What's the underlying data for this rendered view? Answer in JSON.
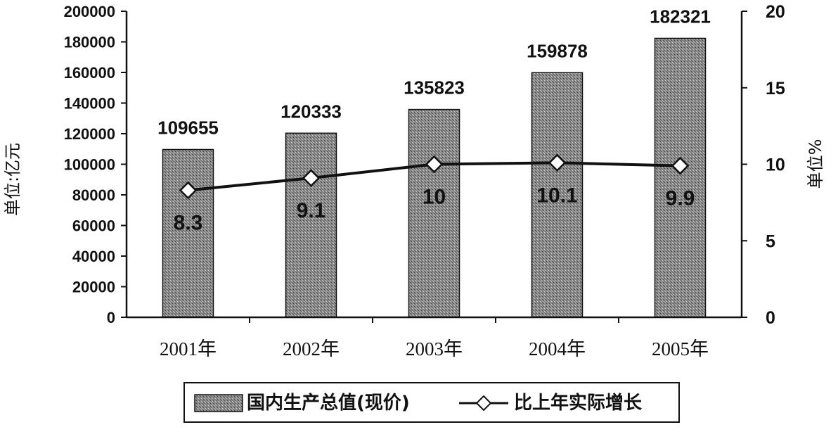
{
  "chart_data": {
    "type": "bar",
    "categories": [
      "2001年",
      "2002年",
      "2003年",
      "2004年",
      "2005年"
    ],
    "series": [
      {
        "name": "国内生产总值(现价)",
        "kind": "bar",
        "axis": "left",
        "values": [
          109655,
          120333,
          135823,
          159878,
          182321
        ],
        "labels": [
          "109655",
          "120333",
          "135823",
          "159878",
          "182321"
        ],
        "color": "#7a7a7a"
      },
      {
        "name": "比上年实际增长",
        "kind": "line",
        "axis": "right",
        "values": [
          8.3,
          9.1,
          10,
          10.1,
          9.9
        ],
        "labels": [
          "8.3",
          "9.1",
          "10",
          "10.1",
          "9.9"
        ],
        "color": "#111111",
        "marker": "diamond"
      }
    ],
    "y_left": {
      "label": "单位:亿元",
      "ylim": [
        0,
        200000
      ],
      "ticks": [
        "0",
        "20000",
        "40000",
        "60000",
        "80000",
        "100000",
        "120000",
        "140000",
        "160000",
        "180000",
        "200000"
      ]
    },
    "y_right": {
      "label": "单位%",
      "ylim": [
        0,
        20
      ],
      "ticks": [
        "0",
        "5",
        "10",
        "15",
        "20"
      ]
    },
    "grid": false,
    "legend": {
      "position": "bottom",
      "items": [
        "国内生产总值(现价)",
        "比上年实际增长"
      ]
    }
  }
}
